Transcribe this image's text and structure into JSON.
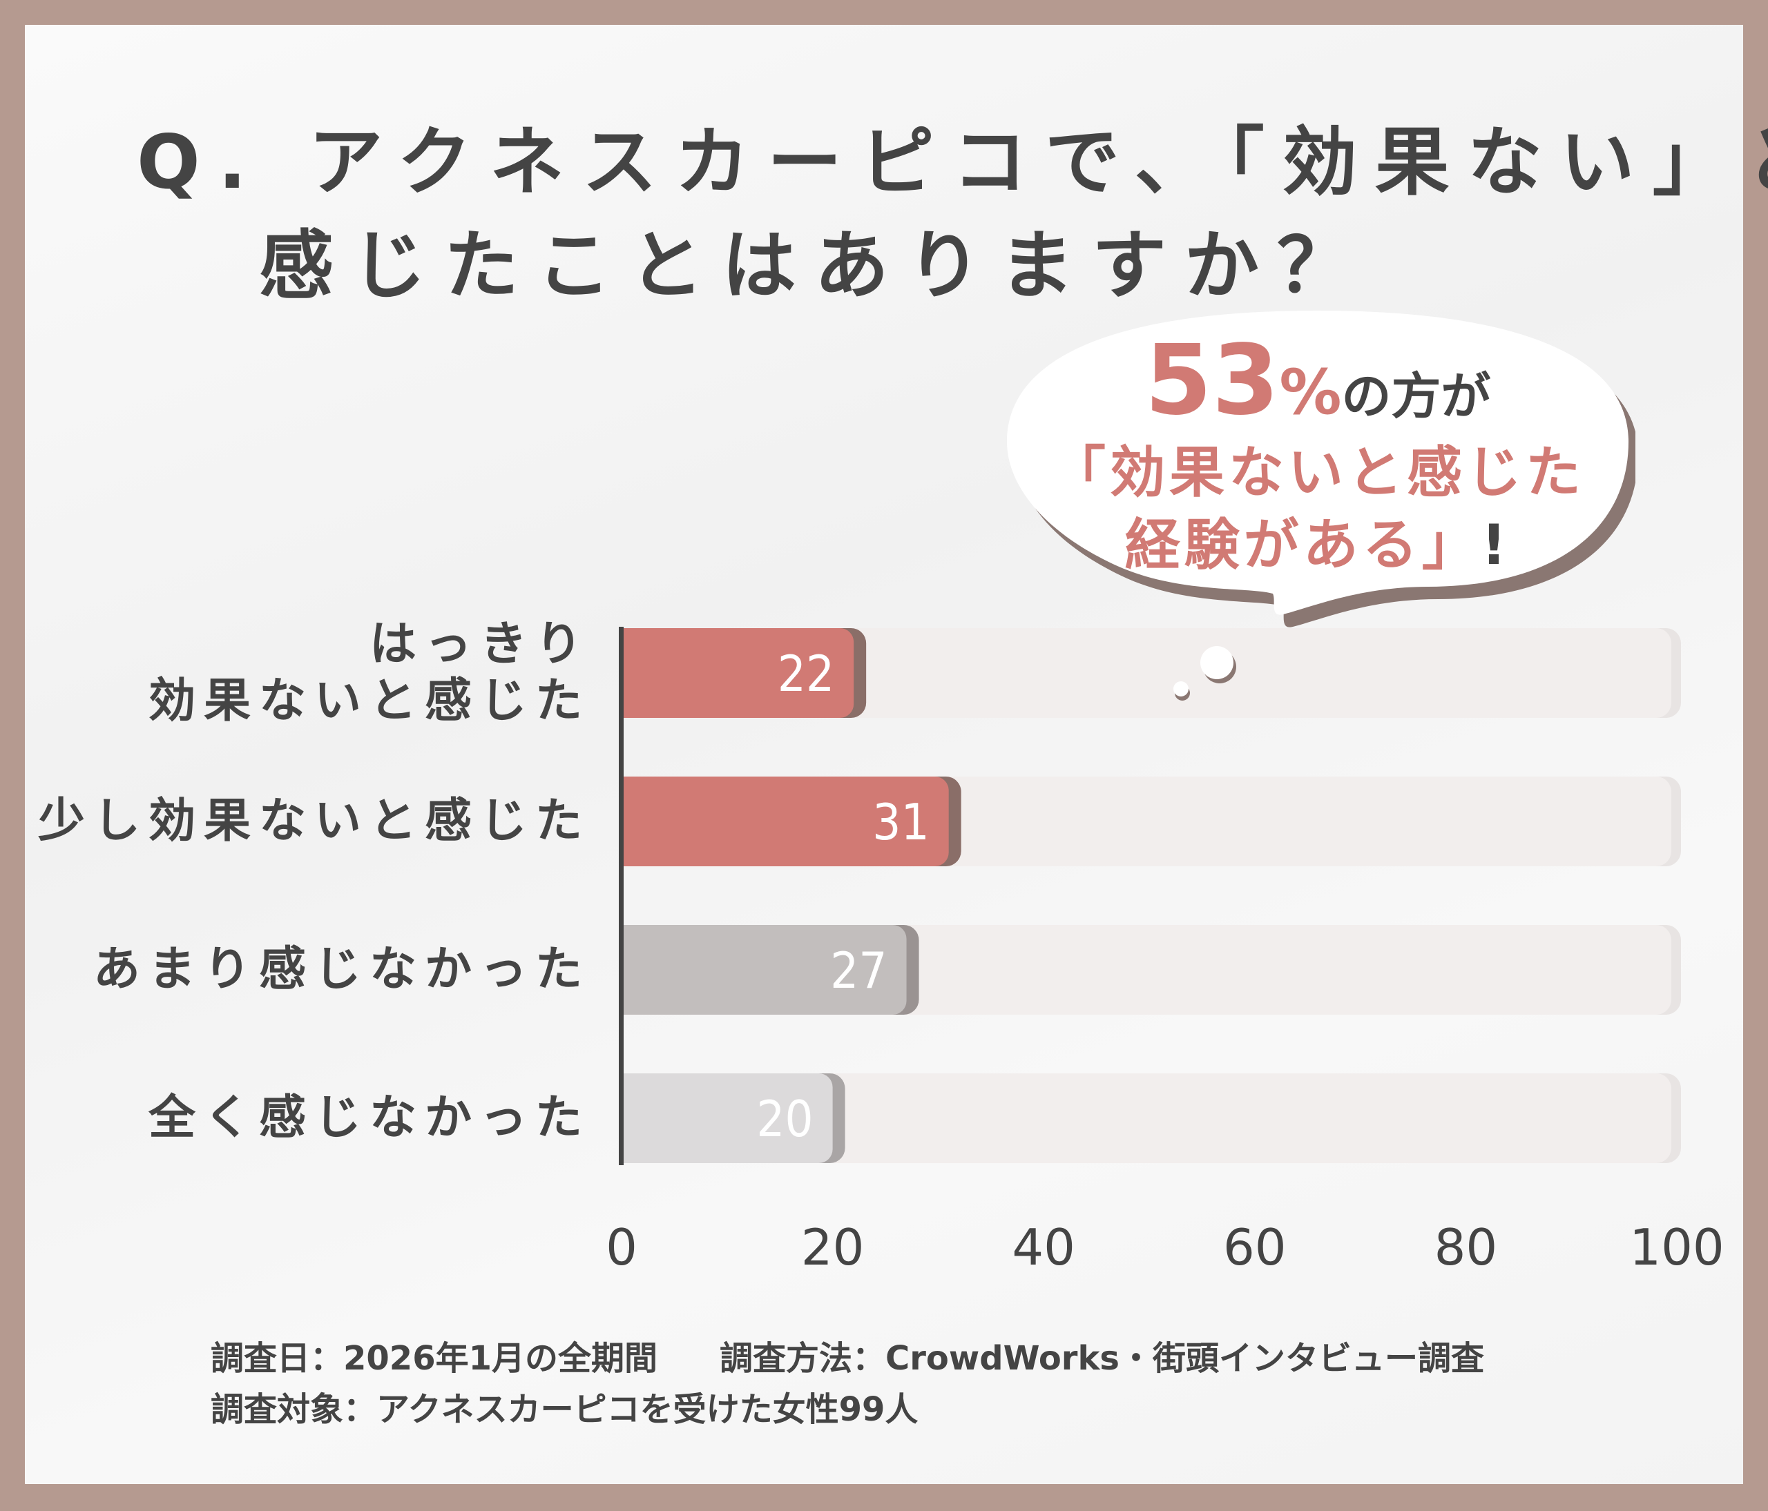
{
  "title": {
    "line1": "Q. アクネスカーピコで、「効果ない」と",
    "line2": "感じたことはありますか？"
  },
  "callout": {
    "percent": "53",
    "percent_sign": "%",
    "suffix": "の方が",
    "line2": "「効果ないと感じた",
    "line3": "経験がある」",
    "exclaim": "!"
  },
  "colors": {
    "accent": "#d17a74",
    "text": "#444444",
    "frame": "#b59a90",
    "track": "#f2eeed"
  },
  "chart_data": {
    "type": "bar",
    "orientation": "horizontal",
    "categories": [
      "はっきり\n効果ないと感じた",
      "少し効果ないと感じた",
      "あまり感じなかった",
      "全く感じなかった"
    ],
    "values": [
      22,
      31,
      27,
      20
    ],
    "bar_colors": [
      "#d17a74",
      "#d17a74",
      "#c2bebd",
      "#dcdadb"
    ],
    "xlim": [
      0,
      100
    ],
    "xticks": [
      "0",
      "20",
      "40",
      "60",
      "80",
      "100"
    ],
    "grid": false
  },
  "footer": {
    "line1a": "調査日：2026年1月の全期間",
    "line1b": "調査方法：CrowdWorks・街頭インタビュー調査",
    "line2": "調査対象：アクネスカーピコを受けた女性99人"
  }
}
